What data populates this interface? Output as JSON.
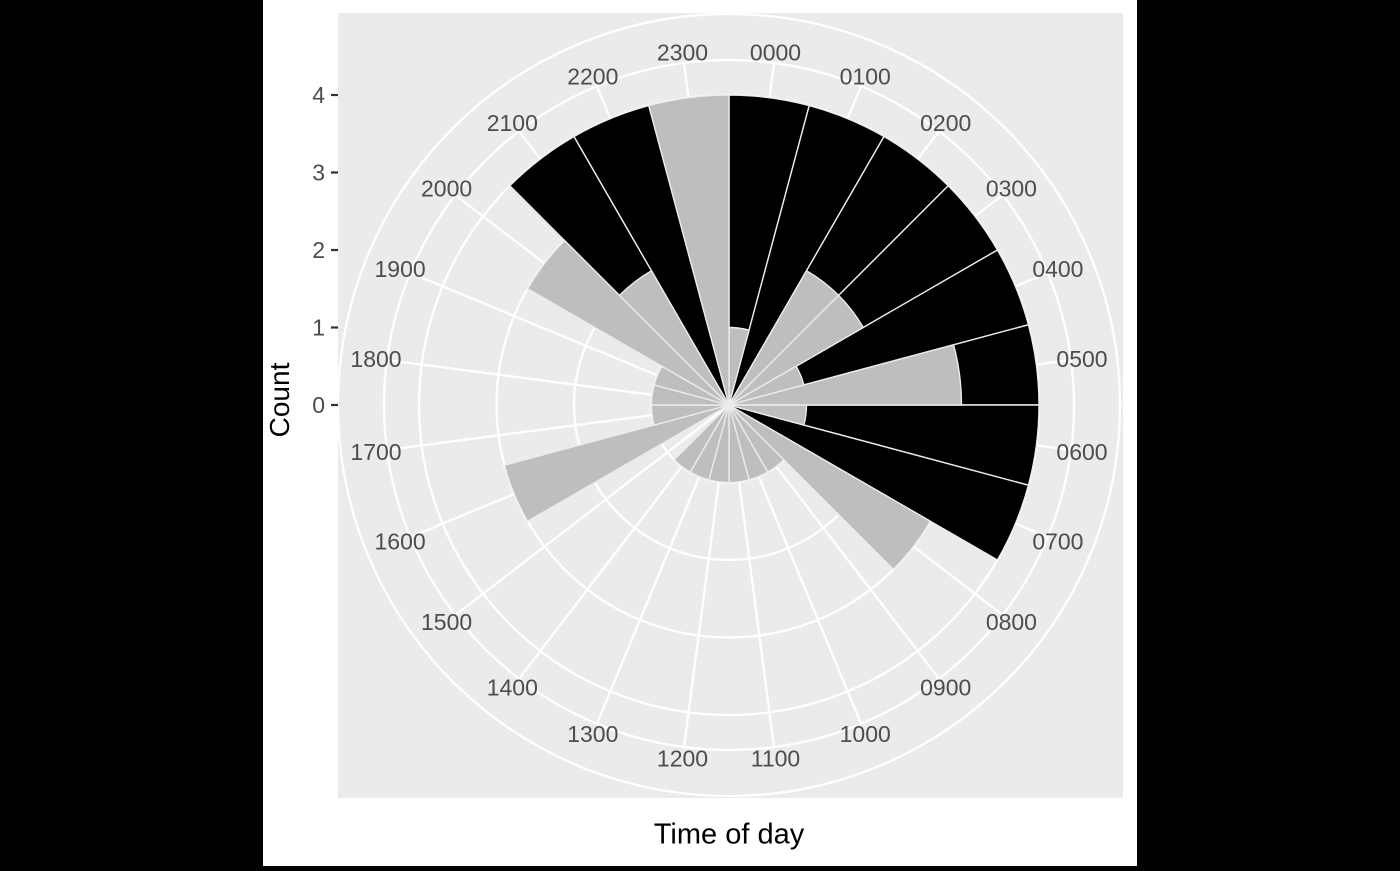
{
  "colors": {
    "page_background": "#000000",
    "figure_background": "#ffffff",
    "panel_background": "#EBEBEB",
    "grid": "#FFFFFF",
    "axis_text": "#4D4D4D",
    "tick_mark": "#333333",
    "title_text": "#000000"
  },
  "chart_data": {
    "type": "bar",
    "subtype": "polar-rose",
    "title": "",
    "xlabel": "Time of day",
    "ylabel": "Count",
    "grid": true,
    "legend_position": "none",
    "ylim": [
      0,
      4
    ],
    "radial_ticks": [
      "0",
      "1",
      "2",
      "3",
      "4"
    ],
    "bin_degrees": 15,
    "categories": [
      "0000",
      "0100",
      "0200",
      "0300",
      "0400",
      "0500",
      "0600",
      "0700",
      "0800",
      "0900",
      "1000",
      "1100",
      "1200",
      "1300",
      "1400",
      "1500",
      "1600",
      "1700",
      "1800",
      "1900",
      "2000",
      "2100",
      "2200",
      "2300"
    ],
    "series": [
      {
        "name": "black",
        "color": "#000000",
        "values": [
          4,
          4,
          4,
          4,
          4,
          4,
          4,
          4,
          0,
          0,
          0,
          0,
          0,
          0,
          0,
          0,
          0,
          0,
          0,
          0,
          0,
          4,
          4,
          0
        ]
      },
      {
        "name": "grey",
        "color": "#BEBEBE",
        "values": [
          1,
          0,
          2,
          2,
          1,
          3,
          1,
          0,
          3,
          1,
          1,
          1,
          1,
          1,
          1,
          0,
          3,
          1,
          1,
          1,
          3,
          2,
          0,
          4
        ]
      }
    ]
  }
}
